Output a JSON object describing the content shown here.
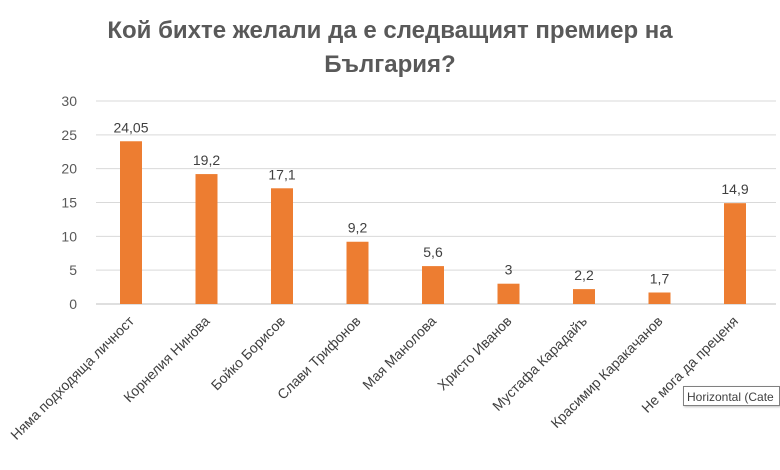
{
  "chart_data": {
    "type": "bar",
    "title_line1": "Кой бихте желали да е следващият премиер на",
    "title_line2": "България?",
    "categories": [
      "Няма подходяща личност",
      "Корнелия Нинова",
      "Бойко Борисов",
      "Слави Трифонов",
      "Мая Манолова",
      "Христо Иванов",
      "Мустафа Карадайъ",
      "Красимир Каракачанов",
      "Не мога да преценя"
    ],
    "values": [
      24.05,
      19.2,
      17.1,
      9.2,
      5.6,
      3,
      2.2,
      1.7,
      14.9
    ],
    "data_labels": [
      "24,05",
      "19,2",
      "17,1",
      "9,2",
      "5,6",
      "3",
      "2,2",
      "1,7",
      "14,9"
    ],
    "ylim": [
      0,
      30
    ],
    "yticks": [
      0,
      5,
      10,
      15,
      20,
      25,
      30
    ],
    "grid": true,
    "legend": "none",
    "bar_color": "#ED7D31"
  },
  "tooltip": {
    "text": "Horizontal (Cate"
  }
}
